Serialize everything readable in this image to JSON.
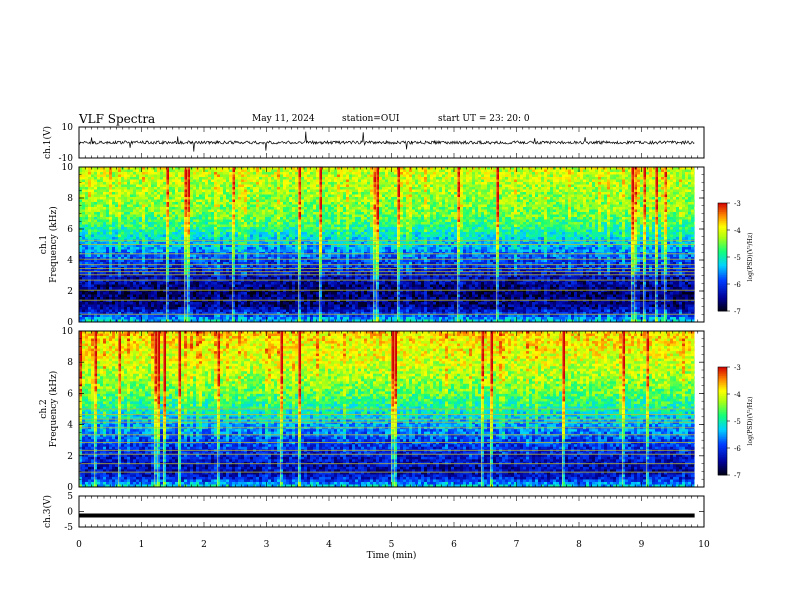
{
  "header": {
    "title": "VLF Spectra",
    "date": "May 11, 2024",
    "station": "station=OUI",
    "start": "start  UT  =   23: 20: 0"
  },
  "chart_data": [
    {
      "type": "line",
      "panel": "ch1-waveform",
      "ylabel": "ch.1(V)",
      "ylim": [
        -10,
        10
      ],
      "ytick_labels": [
        "10",
        "-10"
      ],
      "xlim": [
        0,
        10
      ],
      "baseline": 0,
      "noise_amplitude": 2,
      "color": "#000000"
    },
    {
      "type": "heatmap",
      "panel": "ch1-spectrogram",
      "ylabel_top": "ch.1",
      "ylabel": "Frequency  (kHz)",
      "ylim": [
        0,
        10
      ],
      "ytick_labels": [
        "0",
        "2",
        "4",
        "6",
        "8",
        "10"
      ],
      "xlim": [
        0,
        9.85
      ],
      "colorbar": {
        "label": "log(PSD)(V²/Hz)",
        "range": [
          -7,
          -3
        ],
        "tick_labels": [
          "-3",
          "-4",
          "-5",
          "-6",
          "-7"
        ]
      },
      "level_by_frequency_khz": [
        {
          "f": 0,
          "v": -5.2
        },
        {
          "f": 0.5,
          "v": -6.0
        },
        {
          "f": 1.0,
          "v": -6.6
        },
        {
          "f": 2.0,
          "v": -6.7
        },
        {
          "f": 3.0,
          "v": -6.3
        },
        {
          "f": 4.0,
          "v": -5.9
        },
        {
          "f": 5.0,
          "v": -5.4
        },
        {
          "f": 6.0,
          "v": -4.9
        },
        {
          "f": 7.0,
          "v": -4.5
        },
        {
          "f": 8.5,
          "v": -4.3
        },
        {
          "f": 10.0,
          "v": -4.1
        }
      ],
      "tonal_lines_khz": [
        0.5,
        1.4,
        2.05,
        2.7,
        3.05,
        3.25,
        3.45,
        3.7,
        4.05,
        4.4,
        5.0,
        5.25
      ]
    },
    {
      "type": "heatmap",
      "panel": "ch2-spectrogram",
      "ylabel_top": "ch.2",
      "ylabel": "Frequency  (kHz)",
      "ylim": [
        0,
        10
      ],
      "ytick_labels": [
        "0",
        "2",
        "4",
        "6",
        "8",
        "10"
      ],
      "xlim": [
        0,
        9.85
      ],
      "colorbar": {
        "label": "log(PSD)(V²/Hz)",
        "range": [
          -7,
          -3
        ],
        "tick_labels": [
          "-3",
          "-4",
          "-5",
          "-6",
          "-7"
        ]
      },
      "level_by_frequency_khz": [
        {
          "f": 0,
          "v": -5.2
        },
        {
          "f": 0.5,
          "v": -6.1
        },
        {
          "f": 1.0,
          "v": -6.4
        },
        {
          "f": 2.0,
          "v": -6.2
        },
        {
          "f": 3.0,
          "v": -5.9
        },
        {
          "f": 4.0,
          "v": -5.5
        },
        {
          "f": 5.0,
          "v": -5.0
        },
        {
          "f": 6.0,
          "v": -4.6
        },
        {
          "f": 7.0,
          "v": -4.3
        },
        {
          "f": 8.5,
          "v": -4.0
        },
        {
          "f": 10.0,
          "v": -3.8
        }
      ],
      "tonal_lines_khz": [
        0.95,
        1.5,
        2.1,
        2.35,
        2.85,
        3.35,
        3.8,
        4.15,
        4.35,
        4.65,
        5.0
      ]
    },
    {
      "type": "line",
      "panel": "ch3-waveform",
      "ylabel": "ch.3(V)",
      "ylim": [
        -5,
        5
      ],
      "ytick_labels": [
        "5",
        "0",
        "-5"
      ],
      "xlim": [
        0,
        10
      ],
      "baseline": -1.3,
      "noise_amplitude": 0,
      "color": "#000000"
    }
  ],
  "xaxis": {
    "label": "Time  (min)",
    "range": [
      0,
      10
    ],
    "tick_labels": [
      "0",
      "1",
      "2",
      "3",
      "4",
      "5",
      "6",
      "7",
      "8",
      "9",
      "10"
    ]
  }
}
